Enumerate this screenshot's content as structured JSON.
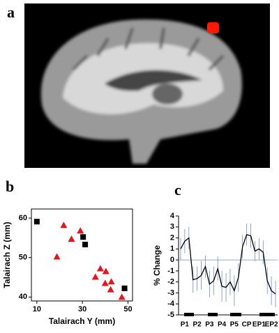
{
  "panel_labels": [
    "a",
    "b",
    "c"
  ],
  "chart_data": [
    {
      "type": "scatter",
      "x_label": "Talairach Y (mm)",
      "y_label": "Talairach Z (mm)",
      "xlim": [
        7.6,
        52
      ],
      "ylim": [
        39,
        62.3
      ],
      "xticks": [
        10,
        30,
        50
      ],
      "yticks": [
        40,
        50,
        60
      ],
      "series": [
        {
          "name": null,
          "marker": "triangle",
          "color": "#e8141b",
          "x": [
            21.8,
            18.8,
            25.2,
            29.1,
            37.9,
            40.3,
            35.7,
            40,
            42.7,
            42.4,
            47.3
          ],
          "y": [
            58.2,
            50.2,
            54.7,
            56.8,
            47.2,
            46.5,
            45.1,
            43.5,
            43.9,
            41.9,
            40
          ]
        },
        {
          "name": null,
          "marker": "square",
          "color": "#000000",
          "x": [
            10,
            30.3,
            31.2,
            48.5
          ],
          "y": [
            59.1,
            55.2,
            53.3,
            42.2
          ]
        }
      ]
    },
    {
      "type": "line",
      "y_label": "% Change",
      "ylim": [
        -5,
        4
      ],
      "yticks": [
        -5,
        -4,
        -3,
        -2,
        -1,
        0,
        1,
        2,
        3,
        4
      ],
      "categories": [
        null,
        "P1",
        null,
        null,
        "P2",
        null,
        null,
        "P3",
        null,
        null,
        "P4",
        null,
        null,
        "P5",
        null,
        null,
        "CP",
        null,
        null,
        "EP1",
        null,
        null,
        "EP2",
        null
      ],
      "values": [
        1.0,
        1.7,
        2.0,
        -1.8,
        -1.7,
        -1.4,
        -0.6,
        -2.2,
        -1.9,
        -0.8,
        -2.4,
        -2.5,
        -2.0,
        -2.8,
        -1.6,
        1.2,
        2.3,
        2.2,
        0.8,
        1.0,
        0.7,
        -1.9,
        -2.8,
        -3.1
      ],
      "errors": [
        1.0,
        1.1,
        1.0,
        1.2,
        1.1,
        1.3,
        1.0,
        1.2,
        1.3,
        1.1,
        1.4,
        1.3,
        1.2,
        1.4,
        1.3,
        1.1,
        1.0,
        1.1,
        0.9,
        1.0,
        1.1,
        1.2,
        1.3,
        1.2
      ],
      "color": "#000000",
      "error_color": "#6c8fc7"
    }
  ]
}
